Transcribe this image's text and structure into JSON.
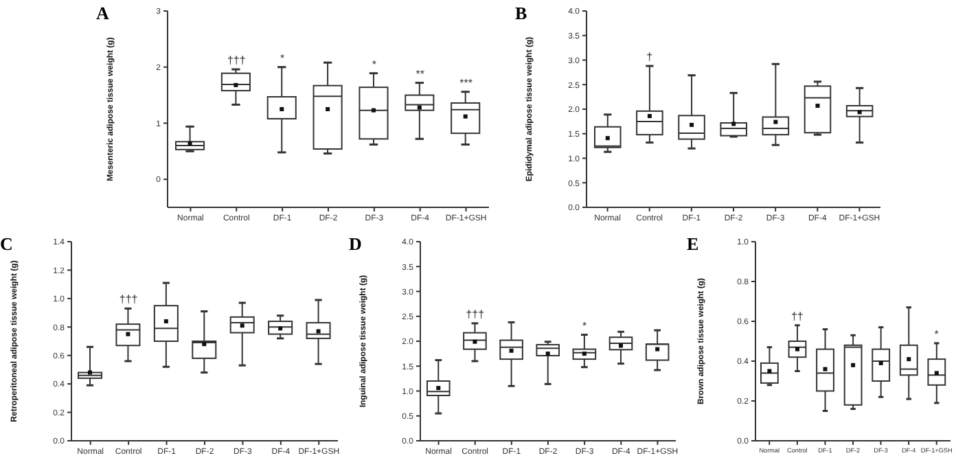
{
  "chart_data": [
    {
      "type": "box",
      "title": "A",
      "ylabel": "Mesenteric adipose tissue weight (g)",
      "categories": [
        "Normal",
        "Control",
        "DF-1",
        "DF-2",
        "DF-3",
        "DF-4",
        "DF-1+GSH"
      ],
      "ylim": [
        -0.5,
        3
      ],
      "yticks": [
        0,
        1,
        2,
        3
      ],
      "boxes": [
        {
          "low": 0.5,
          "q1": 0.53,
          "median": 0.6,
          "q3": 0.67,
          "high": 0.94,
          "mean": 0.64
        },
        {
          "low": 1.33,
          "q1": 1.58,
          "median": 1.69,
          "q3": 1.89,
          "high": 1.96,
          "mean": 1.68
        },
        {
          "low": 0.48,
          "q1": 1.08,
          "median": 1.08,
          "q3": 1.47,
          "high": 2.0,
          "mean": 1.25
        },
        {
          "low": 0.46,
          "q1": 0.54,
          "median": 1.48,
          "q3": 1.67,
          "high": 2.08,
          "mean": 1.25
        },
        {
          "low": 0.62,
          "q1": 0.72,
          "median": 1.23,
          "q3": 1.64,
          "high": 1.89,
          "mean": 1.23
        },
        {
          "low": 0.72,
          "q1": 1.23,
          "median": 1.33,
          "q3": 1.5,
          "high": 1.72,
          "mean": 1.28
        },
        {
          "low": 0.62,
          "q1": 0.82,
          "median": 1.24,
          "q3": 1.36,
          "high": 1.56,
          "mean": 1.12
        }
      ],
      "annotations": [
        {
          "text": "†††",
          "x": "Control",
          "y": 1.96
        },
        {
          "text": "*",
          "x": "DF-1",
          "y": 2.0
        },
        {
          "text": "*",
          "x": "DF-3",
          "y": 1.89
        },
        {
          "text": "**",
          "x": "DF-4",
          "y": 1.72
        },
        {
          "text": "***",
          "x": "DF-1+GSH",
          "y": 1.56
        }
      ]
    },
    {
      "type": "box",
      "title": "B",
      "ylabel": "Epididymal adipose tissue weight (g)",
      "categories": [
        "Normal",
        "Control",
        "DF-1",
        "DF-2",
        "DF-3",
        "DF-4",
        "DF-1+GSH"
      ],
      "ylim": [
        0,
        4
      ],
      "yticks": [
        {
          "value": 0,
          "label": "0.0"
        },
        {
          "value": 0.5,
          "label": "0.5"
        },
        {
          "value": 1,
          "label": "1.0"
        },
        {
          "value": 1.5,
          "label": "1.5"
        },
        {
          "value": 2,
          "label": "2.0"
        },
        {
          "value": 2.5,
          "label": "2.5"
        },
        {
          "value": 3,
          "label": "3.0"
        },
        {
          "value": 3.5,
          "label": "3.5"
        },
        {
          "value": 4,
          "label": "4.0"
        }
      ],
      "boxes": [
        {
          "low": 1.13,
          "q1": 1.22,
          "median": 1.25,
          "q3": 1.64,
          "high": 1.89,
          "mean": 1.41
        },
        {
          "low": 1.32,
          "q1": 1.48,
          "median": 1.75,
          "q3": 1.96,
          "high": 2.88,
          "mean": 1.86
        },
        {
          "low": 1.2,
          "q1": 1.39,
          "median": 1.51,
          "q3": 1.87,
          "high": 2.69,
          "mean": 1.68
        },
        {
          "low": 1.44,
          "q1": 1.46,
          "median": 1.61,
          "q3": 1.72,
          "high": 2.33,
          "mean": 1.7
        },
        {
          "low": 1.27,
          "q1": 1.48,
          "median": 1.61,
          "q3": 1.84,
          "high": 2.92,
          "mean": 1.74
        },
        {
          "low": 1.48,
          "q1": 1.52,
          "median": 2.23,
          "q3": 2.47,
          "high": 2.56,
          "mean": 2.07
        },
        {
          "low": 1.32,
          "q1": 1.85,
          "median": 1.97,
          "q3": 2.07,
          "high": 2.43,
          "mean": 1.94
        }
      ],
      "annotations": [
        {
          "text": "†",
          "x": "Control",
          "y": 2.88
        }
      ]
    },
    {
      "type": "box",
      "title": "C",
      "ylabel": "Retroperitoneal adipose tissue weight (g)",
      "categories": [
        "Normal",
        "Control",
        "DF-1",
        "DF-2",
        "DF-3",
        "DF-4",
        "DF-1+GSH"
      ],
      "ylim": [
        0,
        1.4
      ],
      "yticks": [
        {
          "value": 0,
          "label": "0.0"
        },
        {
          "value": 0.2,
          "label": "0.2"
        },
        {
          "value": 0.4,
          "label": "0.4"
        },
        {
          "value": 0.6,
          "label": "0.6"
        },
        {
          "value": 0.8,
          "label": "0.8"
        },
        {
          "value": 1,
          "label": "1.0"
        },
        {
          "value": 1.2,
          "label": "1.2"
        },
        {
          "value": 1.4,
          "label": "1.4"
        }
      ],
      "boxes": [
        {
          "low": 0.39,
          "q1": 0.44,
          "median": 0.46,
          "q3": 0.48,
          "high": 0.66,
          "mean": 0.48
        },
        {
          "low": 0.56,
          "q1": 0.67,
          "median": 0.78,
          "q3": 0.82,
          "high": 0.93,
          "mean": 0.75
        },
        {
          "low": 0.52,
          "q1": 0.7,
          "median": 0.79,
          "q3": 0.95,
          "high": 1.11,
          "mean": 0.84
        },
        {
          "low": 0.48,
          "q1": 0.58,
          "median": 0.69,
          "q3": 0.7,
          "high": 0.91,
          "mean": 0.68
        },
        {
          "low": 0.53,
          "q1": 0.76,
          "median": 0.83,
          "q3": 0.87,
          "high": 0.97,
          "mean": 0.81
        },
        {
          "low": 0.72,
          "q1": 0.75,
          "median": 0.8,
          "q3": 0.84,
          "high": 0.88,
          "mean": 0.79
        },
        {
          "low": 0.54,
          "q1": 0.72,
          "median": 0.75,
          "q3": 0.83,
          "high": 0.99,
          "mean": 0.77
        }
      ],
      "annotations": [
        {
          "text": "†††",
          "x": "Control",
          "y": 0.93
        }
      ]
    },
    {
      "type": "box",
      "title": "D",
      "ylabel": "Inguinal adipose tissue weight (g)",
      "categories": [
        "Normal",
        "Control",
        "DF-1",
        "DF-2",
        "DF-3",
        "DF-4",
        "DF-1+GSH"
      ],
      "ylim": [
        0,
        4
      ],
      "yticks": [
        {
          "value": 0,
          "label": "0.0"
        },
        {
          "value": 0.5,
          "label": "0.5"
        },
        {
          "value": 1,
          "label": "1.0"
        },
        {
          "value": 1.5,
          "label": "1.5"
        },
        {
          "value": 2,
          "label": "2.0"
        },
        {
          "value": 2.5,
          "label": "2.5"
        },
        {
          "value": 3,
          "label": "3.0"
        },
        {
          "value": 3.5,
          "label": "3.5"
        },
        {
          "value": 4,
          "label": "4.0"
        }
      ],
      "boxes": [
        {
          "low": 0.55,
          "q1": 0.91,
          "median": 0.99,
          "q3": 1.2,
          "high": 1.62,
          "mean": 1.06
        },
        {
          "low": 1.6,
          "q1": 1.84,
          "median": 2.02,
          "q3": 2.17,
          "high": 2.36,
          "mean": 1.99
        },
        {
          "low": 1.1,
          "q1": 1.64,
          "median": 1.88,
          "q3": 2.02,
          "high": 2.38,
          "mean": 1.81
        },
        {
          "low": 1.14,
          "q1": 1.71,
          "median": 1.86,
          "q3": 1.93,
          "high": 1.99,
          "mean": 1.75
        },
        {
          "low": 1.48,
          "q1": 1.64,
          "median": 1.77,
          "q3": 1.84,
          "high": 2.13,
          "mean": 1.75
        },
        {
          "low": 1.55,
          "q1": 1.83,
          "median": 1.96,
          "q3": 2.08,
          "high": 2.19,
          "mean": 1.91
        },
        {
          "low": 1.42,
          "q1": 1.62,
          "median": 1.94,
          "q3": 1.94,
          "high": 2.22,
          "mean": 1.84
        }
      ],
      "annotations": [
        {
          "text": "†††",
          "x": "Control",
          "y": 2.36
        },
        {
          "text": "*",
          "x": "DF-3",
          "y": 2.13
        }
      ]
    },
    {
      "type": "box",
      "title": "E",
      "ylabel": "Brown adipose tissue weight (g)",
      "categories": [
        "Normal",
        "Control",
        "DF-1",
        "DF-2",
        "DF-3",
        "DF-4",
        "DF-1+GSH"
      ],
      "ylim": [
        0,
        1
      ],
      "yticks": [
        {
          "value": 0,
          "label": "0.0"
        },
        {
          "value": 0.2,
          "label": "0.2"
        },
        {
          "value": 0.4,
          "label": "0.4"
        },
        {
          "value": 0.6,
          "label": "0.6"
        },
        {
          "value": 0.8,
          "label": "0.8"
        },
        {
          "value": 1,
          "label": "1.0"
        }
      ],
      "boxes": [
        {
          "low": 0.28,
          "q1": 0.29,
          "median": 0.34,
          "q3": 0.39,
          "high": 0.47,
          "mean": 0.35
        },
        {
          "low": 0.35,
          "q1": 0.42,
          "median": 0.47,
          "q3": 0.5,
          "high": 0.58,
          "mean": 0.46
        },
        {
          "low": 0.15,
          "q1": 0.25,
          "median": 0.34,
          "q3": 0.46,
          "high": 0.56,
          "mean": 0.36
        },
        {
          "low": 0.16,
          "q1": 0.18,
          "median": 0.47,
          "q3": 0.48,
          "high": 0.53,
          "mean": 0.38
        },
        {
          "low": 0.22,
          "q1": 0.3,
          "median": 0.4,
          "q3": 0.46,
          "high": 0.57,
          "mean": 0.39
        },
        {
          "low": 0.21,
          "q1": 0.33,
          "median": 0.36,
          "q3": 0.48,
          "high": 0.67,
          "mean": 0.41
        },
        {
          "low": 0.19,
          "q1": 0.28,
          "median": 0.33,
          "q3": 0.41,
          "high": 0.49,
          "mean": 0.34
        }
      ],
      "annotations": [
        {
          "text": "††",
          "x": "Control",
          "y": 0.58
        },
        {
          "text": "*",
          "x": "DF-1+GSH",
          "y": 0.49
        }
      ]
    }
  ]
}
